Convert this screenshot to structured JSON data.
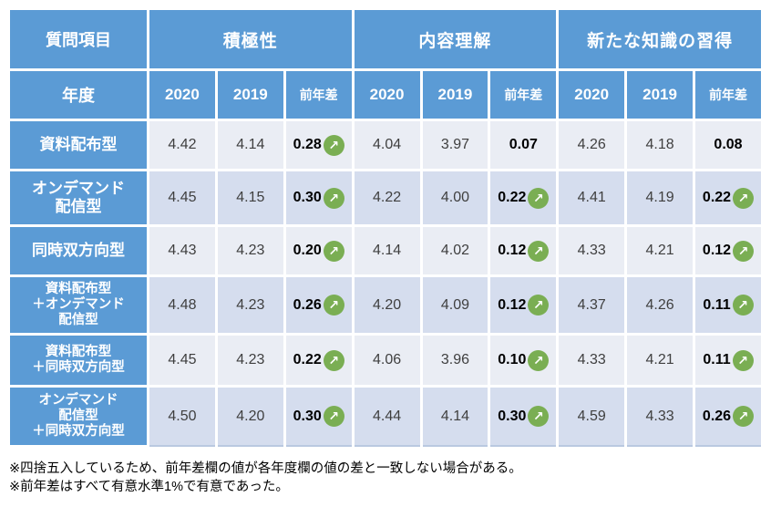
{
  "colors": {
    "header_blue": "#5B9BD5",
    "band_light": "#EAEDF4",
    "band_dark": "#D5DDEE",
    "arrow_green": "#7AAE53",
    "value_text": "#3F3F3F",
    "diff_text": "#000000"
  },
  "icons": {
    "up_trend": "↗"
  },
  "chart_data": {
    "type": "table",
    "corner_header": "質問項目",
    "corner_subheader": "年度",
    "groups": [
      "積極性",
      "内容理解",
      "新たな知識の習得"
    ],
    "year_columns": [
      "2020",
      "2019",
      "前年差"
    ],
    "rows": [
      {
        "label": "資料配布型",
        "measures": [
          {
            "y2020": "4.42",
            "y2019": "4.14",
            "diff": "0.28",
            "arrow": true
          },
          {
            "y2020": "4.04",
            "y2019": "3.97",
            "diff": "0.07",
            "arrow": false
          },
          {
            "y2020": "4.26",
            "y2019": "4.18",
            "diff": "0.08",
            "arrow": false
          }
        ]
      },
      {
        "label": "オンデマンド\n配信型",
        "measures": [
          {
            "y2020": "4.45",
            "y2019": "4.15",
            "diff": "0.30",
            "arrow": true
          },
          {
            "y2020": "4.22",
            "y2019": "4.00",
            "diff": "0.22",
            "arrow": true
          },
          {
            "y2020": "4.41",
            "y2019": "4.19",
            "diff": "0.22",
            "arrow": true
          }
        ]
      },
      {
        "label": "同時双方向型",
        "measures": [
          {
            "y2020": "4.43",
            "y2019": "4.23",
            "diff": "0.20",
            "arrow": true
          },
          {
            "y2020": "4.14",
            "y2019": "4.02",
            "diff": "0.12",
            "arrow": true
          },
          {
            "y2020": "4.33",
            "y2019": "4.21",
            "diff": "0.12",
            "arrow": true
          }
        ]
      },
      {
        "label": "資料配布型\n＋オンデマンド\n配信型",
        "measures": [
          {
            "y2020": "4.48",
            "y2019": "4.23",
            "diff": "0.26",
            "arrow": true
          },
          {
            "y2020": "4.20",
            "y2019": "4.09",
            "diff": "0.12",
            "arrow": true
          },
          {
            "y2020": "4.37",
            "y2019": "4.26",
            "diff": "0.11",
            "arrow": true
          }
        ]
      },
      {
        "label": "資料配布型\n＋同時双方向型",
        "measures": [
          {
            "y2020": "4.45",
            "y2019": "4.23",
            "diff": "0.22",
            "arrow": true
          },
          {
            "y2020": "4.06",
            "y2019": "3.96",
            "diff": "0.10",
            "arrow": true
          },
          {
            "y2020": "4.33",
            "y2019": "4.21",
            "diff": "0.11",
            "arrow": true
          }
        ]
      },
      {
        "label": "オンデマンド\n配信型\n＋同時双方向型",
        "measures": [
          {
            "y2020": "4.50",
            "y2019": "4.20",
            "diff": "0.30",
            "arrow": true
          },
          {
            "y2020": "4.44",
            "y2019": "4.14",
            "diff": "0.30",
            "arrow": true
          },
          {
            "y2020": "4.59",
            "y2019": "4.33",
            "diff": "0.26",
            "arrow": true
          }
        ]
      }
    ]
  },
  "notes": [
    "※四捨五入しているため、前年差欄の値が各年度欄の値の差と一致しない場合がある。",
    "※前年差はすべて有意水準1%で有意であった。"
  ]
}
